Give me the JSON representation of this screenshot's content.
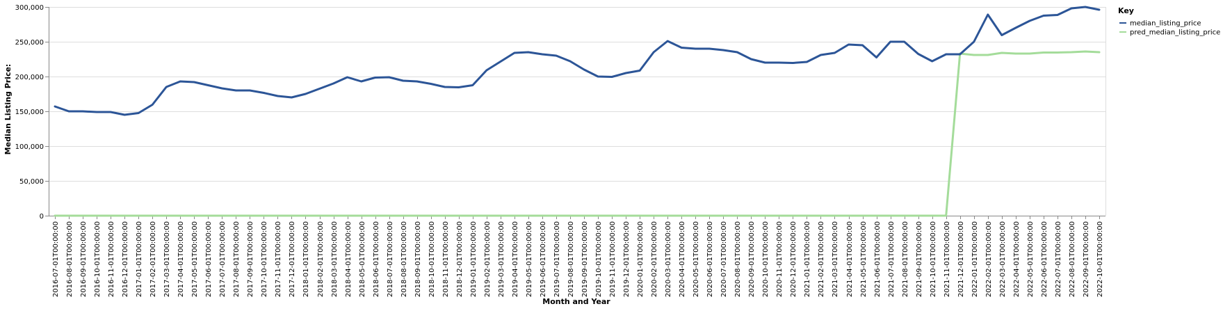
{
  "chart_data": {
    "type": "line",
    "xlabel": "Month and Year",
    "ylabel": "Median Listing Price:",
    "ylim": [
      0,
      300000
    ],
    "yticks": [
      0,
      50000,
      100000,
      150000,
      200000,
      250000,
      300000
    ],
    "grid": true,
    "legend": {
      "title": "Key",
      "placement": "top-right",
      "entries": [
        "median_listing_price",
        "pred_median_listing_price"
      ]
    },
    "colors": {
      "median_listing_price": "#2c5597",
      "pred_median_listing_price": "#a4dc9a"
    },
    "x": [
      "2016-07-01T00:00:00",
      "2016-08-01T00:00:00",
      "2016-09-01T00:00:00",
      "2016-10-01T00:00:00",
      "2016-11-01T00:00:00",
      "2016-12-01T00:00:00",
      "2017-01-01T00:00:00",
      "2017-02-01T00:00:00",
      "2017-03-01T00:00:00",
      "2017-04-01T00:00:00",
      "2017-05-01T00:00:00",
      "2017-06-01T00:00:00",
      "2017-07-01T00:00:00",
      "2017-08-01T00:00:00",
      "2017-09-01T00:00:00",
      "2017-10-01T00:00:00",
      "2017-11-01T00:00:00",
      "2017-12-01T00:00:00",
      "2018-01-01T00:00:00",
      "2018-02-01T00:00:00",
      "2018-03-01T00:00:00",
      "2018-04-01T00:00:00",
      "2018-05-01T00:00:00",
      "2018-06-01T00:00:00",
      "2018-07-01T00:00:00",
      "2018-08-01T00:00:00",
      "2018-09-01T00:00:00",
      "2018-10-01T00:00:00",
      "2018-11-01T00:00:00",
      "2018-12-01T00:00:00",
      "2019-01-01T00:00:00",
      "2019-02-01T00:00:00",
      "2019-03-01T00:00:00",
      "2019-04-01T00:00:00",
      "2019-05-01T00:00:00",
      "2019-06-01T00:00:00",
      "2019-07-01T00:00:00",
      "2019-08-01T00:00:00",
      "2019-09-01T00:00:00",
      "2019-10-01T00:00:00",
      "2019-11-01T00:00:00",
      "2019-12-01T00:00:00",
      "2020-01-01T00:00:00",
      "2020-02-01T00:00:00",
      "2020-03-01T00:00:00",
      "2020-04-01T00:00:00",
      "2020-05-01T00:00:00",
      "2020-06-01T00:00:00",
      "2020-07-01T00:00:00",
      "2020-08-01T00:00:00",
      "2020-09-01T00:00:00",
      "2020-10-01T00:00:00",
      "2020-11-01T00:00:00",
      "2020-12-01T00:00:00",
      "2021-01-01T00:00:00",
      "2021-02-01T00:00:00",
      "2021-03-01T00:00:00",
      "2021-04-01T00:00:00",
      "2021-05-01T00:00:00",
      "2021-06-01T00:00:00",
      "2021-07-01T00:00:00",
      "2021-08-01T00:00:00",
      "2021-09-01T00:00:00",
      "2021-10-01T00:00:00",
      "2021-11-01T00:00:00",
      "2021-12-01T00:00:00",
      "2022-01-01T00:00:00",
      "2022-02-01T00:00:00",
      "2022-03-01T00:00:00",
      "2022-04-01T00:00:00",
      "2022-05-01T00:00:00",
      "2022-06-01T00:00:00",
      "2022-07-01T00:00:00",
      "2022-08-01T00:00:00",
      "2022-09-01T00:00:00",
      "2022-10-01T00:00:00"
    ],
    "series": [
      {
        "name": "median_listing_price",
        "values": [
          157000,
          150000,
          150000,
          149000,
          149000,
          145000,
          147500,
          159500,
          185000,
          193000,
          192000,
          187500,
          183000,
          180000,
          180000,
          176500,
          172000,
          170000,
          175000,
          182500,
          190000,
          199000,
          193000,
          198500,
          199000,
          194000,
          193000,
          189500,
          185000,
          184500,
          187500,
          209000,
          221500,
          234000,
          235000,
          232000,
          230000,
          222000,
          210000,
          200000,
          199500,
          205000,
          208500,
          235000,
          251000,
          241500,
          240000,
          240000,
          238000,
          235000,
          225000,
          220000,
          220000,
          219500,
          221000,
          231000,
          234000,
          246000,
          245000,
          227500,
          250000,
          250000,
          232500,
          222000,
          232000,
          232000,
          250000,
          289000,
          259500,
          270000,
          280000,
          287500,
          288500,
          298000,
          300000,
          296000
        ]
      },
      {
        "name": "pred_median_listing_price",
        "values": [
          0,
          0,
          0,
          0,
          0,
          0,
          0,
          0,
          0,
          0,
          0,
          0,
          0,
          0,
          0,
          0,
          0,
          0,
          0,
          0,
          0,
          0,
          0,
          0,
          0,
          0,
          0,
          0,
          0,
          0,
          0,
          0,
          0,
          0,
          0,
          0,
          0,
          0,
          0,
          0,
          0,
          0,
          0,
          0,
          0,
          0,
          0,
          0,
          0,
          0,
          0,
          0,
          0,
          0,
          0,
          0,
          0,
          0,
          0,
          0,
          0,
          0,
          0,
          0,
          0,
          233000,
          231000,
          231000,
          234000,
          233000,
          233000,
          234500,
          234500,
          235000,
          236000,
          235000
        ]
      }
    ]
  }
}
